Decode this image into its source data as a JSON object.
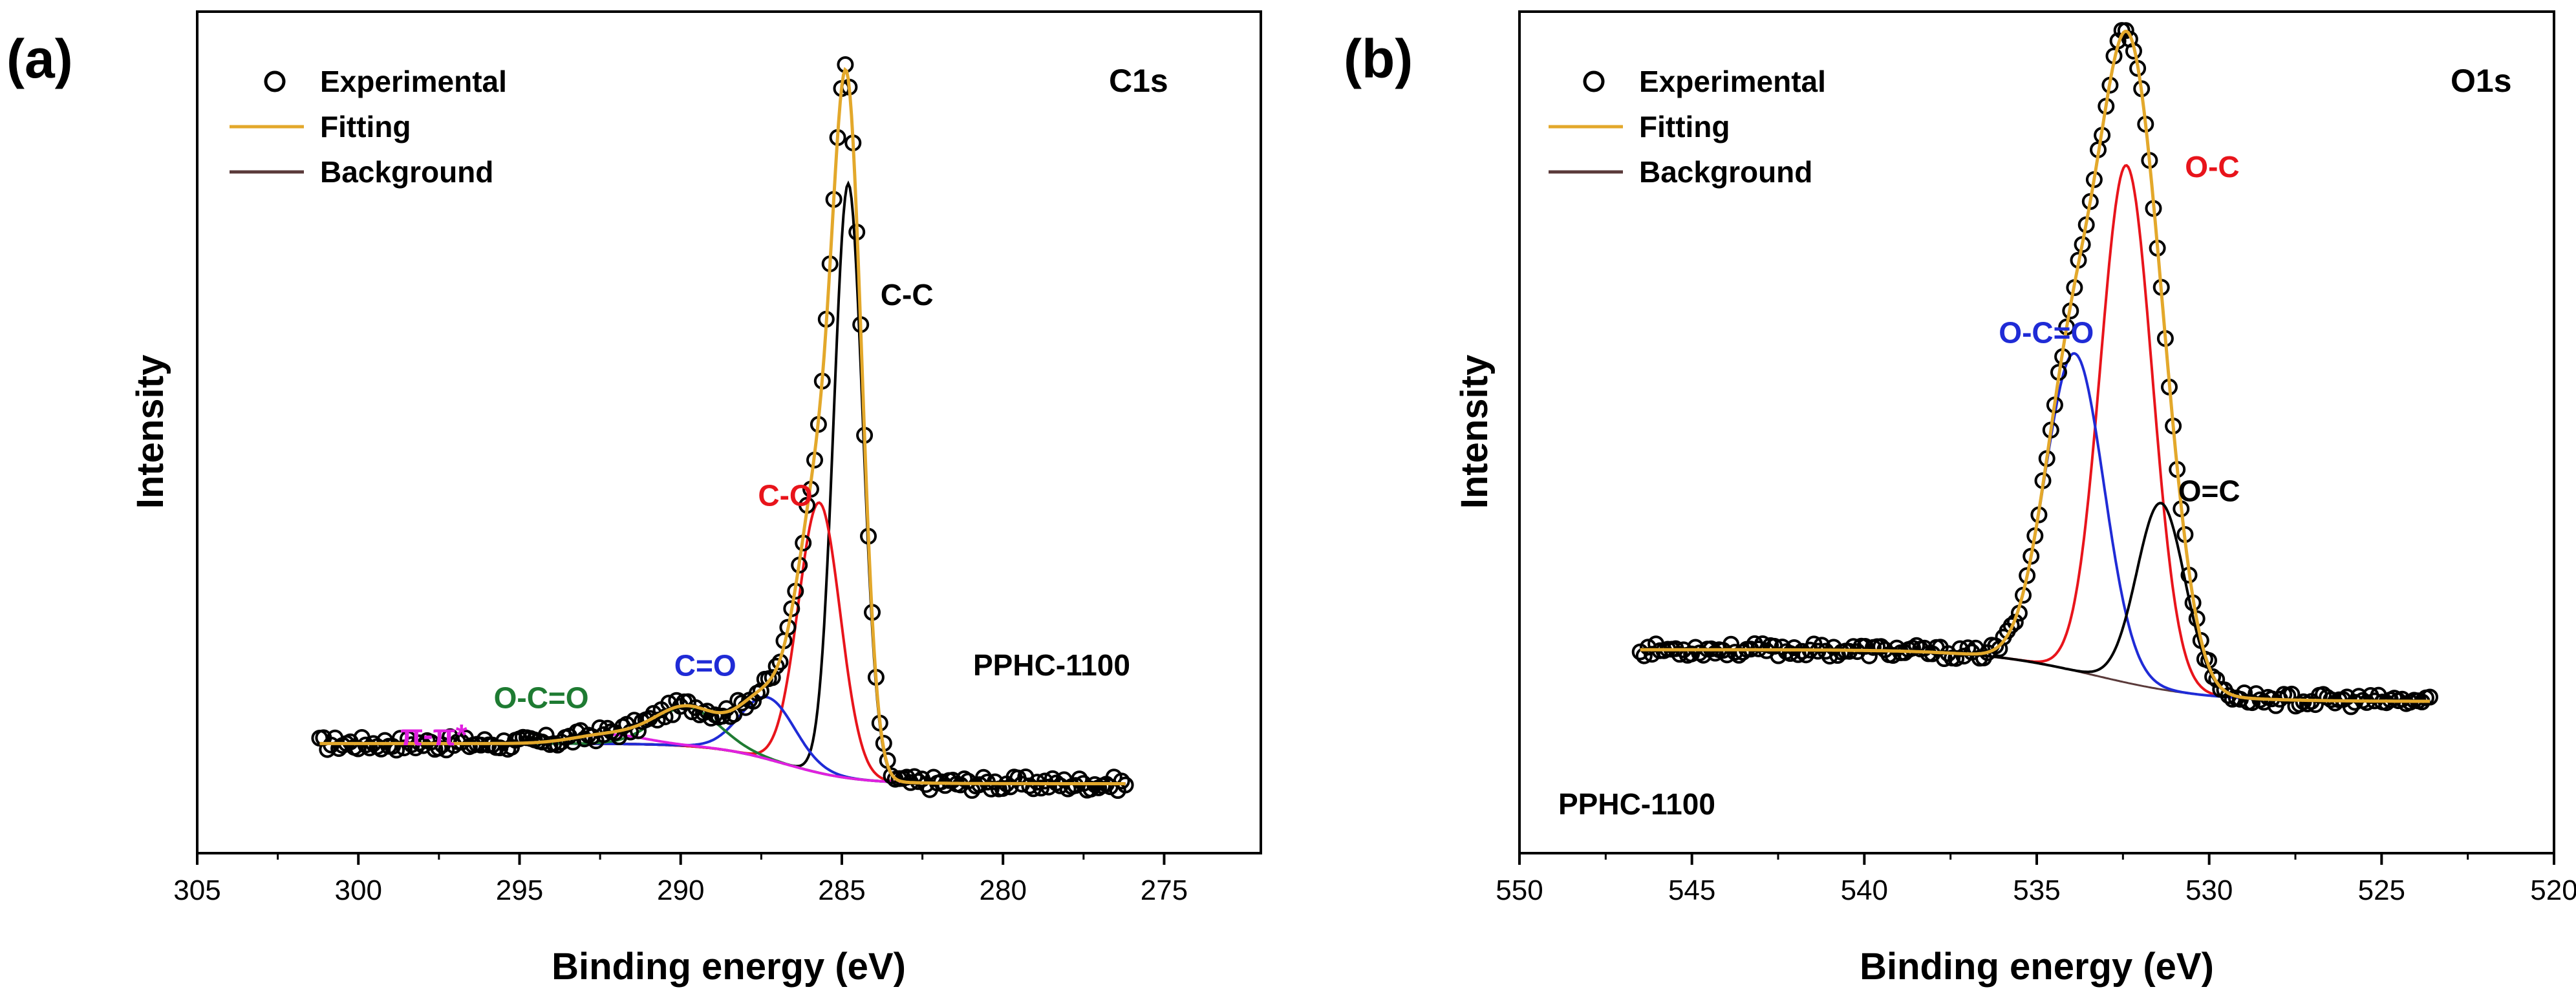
{
  "chart_data": [
    {
      "type": "line",
      "panel_label": "(a)",
      "title": "C1s",
      "sample": "PPHC-1100",
      "xlabel": "Binding energy (eV)",
      "ylabel": "Intensity",
      "xlim": [
        305,
        272
      ],
      "ylim": [
        -0.09,
        1.0
      ],
      "xticks": [
        305,
        300,
        295,
        290,
        285,
        280,
        275
      ],
      "legend": [
        {
          "label": "Experimental",
          "kind": "marker"
        },
        {
          "label": "Fitting",
          "kind": "line",
          "color": "#e3a82b"
        },
        {
          "label": "Background",
          "kind": "line",
          "color": "#5a3a3a"
        }
      ],
      "x_start": 301.2,
      "x_end": 276.2,
      "background": {
        "a": 0.0,
        "b": 0.052,
        "center": 286.8,
        "width": 1.1,
        "left_end": 301.2,
        "right_end": 276.2
      },
      "components": [
        {
          "name": "C-C",
          "center": 284.8,
          "amp": 0.77,
          "sigma": 0.45,
          "color": "#000000"
        },
        {
          "name": "C-O",
          "center": 285.7,
          "amp": 0.35,
          "sigma": 0.65,
          "color": "#e8141b"
        },
        {
          "name": "C=O",
          "center": 287.3,
          "amp": 0.08,
          "sigma": 0.85,
          "color": "#1f2bd6"
        },
        {
          "name": "O-C=O",
          "center": 289.8,
          "amp": 0.05,
          "sigma": 1.0,
          "color": "#1e7b32"
        },
        {
          "name": "π-π*",
          "center": 292.2,
          "amp": 0.012,
          "sigma": 1.1,
          "color": "#e020e0"
        }
      ],
      "annotations": [
        {
          "text": "C-C",
          "x": 283.8,
          "y": 0.62,
          "color": "#000000"
        },
        {
          "text": "C-O",
          "x": 287.6,
          "y": 0.36,
          "color": "#e8141b"
        },
        {
          "text": "C=O",
          "x": 290.2,
          "y": 0.14,
          "color": "#1f2bd6"
        },
        {
          "text": "O-C=O",
          "x": 295.8,
          "y": 0.098,
          "color": "#1e7b32"
        },
        {
          "text": "π-π*",
          "x": 298.7,
          "y": 0.05,
          "color": "#e020e0"
        }
      ]
    },
    {
      "type": "line",
      "panel_label": "(b)",
      "title": "O1s",
      "sample": "PPHC-1100",
      "xlabel": "Binding energy (eV)",
      "ylabel": "Intensity",
      "xlim": [
        550,
        520
      ],
      "ylim": [
        -0.22,
        1.0
      ],
      "xticks": [
        550,
        545,
        540,
        535,
        530,
        525,
        520
      ],
      "legend": [
        {
          "label": "Experimental",
          "kind": "marker"
        },
        {
          "label": "Fitting",
          "kind": "line",
          "color": "#e3a82b"
        },
        {
          "label": "Background",
          "kind": "line",
          "color": "#5a3a3a"
        }
      ],
      "x_start": 546.5,
      "x_end": 523.6,
      "background": {
        "a": 0.0,
        "b": 0.075,
        "center": 533.3,
        "width": 1.6,
        "left_end": 546.5,
        "right_end": 523.6
      },
      "components": [
        {
          "name": "O-C",
          "center": 532.4,
          "amp": 0.75,
          "sigma": 0.75,
          "color": "#e8141b"
        },
        {
          "name": "O-C=O",
          "center": 533.9,
          "amp": 0.46,
          "sigma": 0.85,
          "color": "#1f2bd6"
        },
        {
          "name": "O=C",
          "center": 531.4,
          "amp": 0.27,
          "sigma": 0.7,
          "color": "#000000"
        }
      ],
      "annotations": [
        {
          "text": "O-C",
          "x": 530.7,
          "y": 0.76,
          "color": "#e8141b"
        },
        {
          "text": "O-C=O",
          "x": 536.1,
          "y": 0.52,
          "color": "#1f2bd6"
        },
        {
          "text": "O=C",
          "x": 530.9,
          "y": 0.29,
          "color": "#000000"
        }
      ]
    }
  ]
}
